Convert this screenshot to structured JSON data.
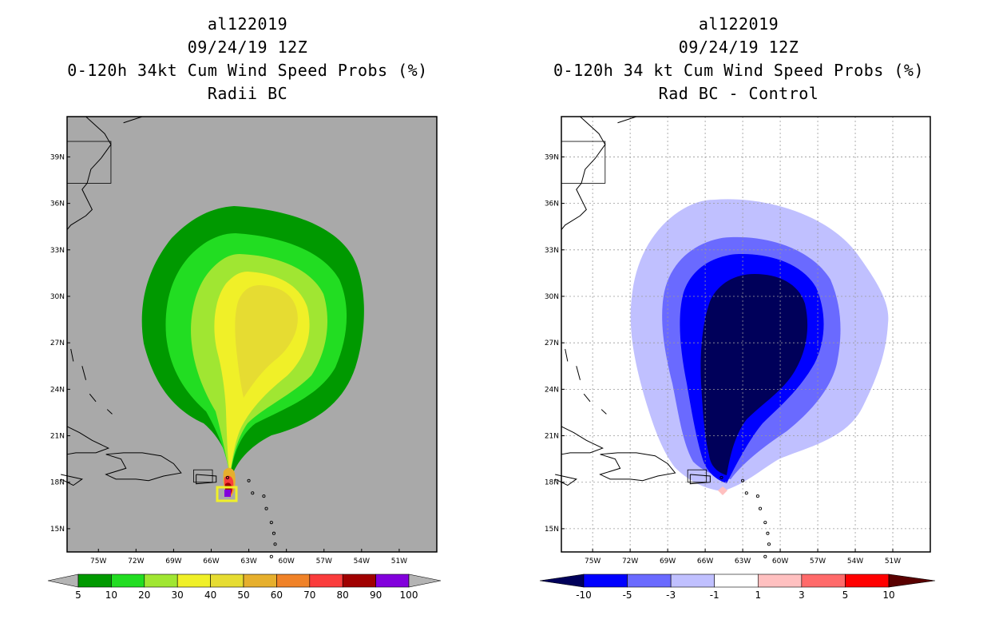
{
  "left_panel": {
    "title_lines": [
      "al122019",
      "09/24/19 12Z",
      "0-120h 34kt Cum Wind Speed Probs (%)",
      "Radii BC"
    ],
    "lat_labels": [
      "39N",
      "36N",
      "33N",
      "30N",
      "27N",
      "24N",
      "21N",
      "18N",
      "15N"
    ],
    "lon_labels": [
      "75W",
      "72W",
      "69W",
      "66W",
      "63W",
      "60W",
      "57W",
      "54W",
      "51W"
    ],
    "colorbar": {
      "labels": [
        "5",
        "10",
        "20",
        "30",
        "40",
        "50",
        "60",
        "70",
        "80",
        "90",
        "100"
      ],
      "colors": [
        "#009900",
        "#22dd22",
        "#a0e632",
        "#f0f028",
        "#e6dc32",
        "#e6af2d",
        "#f08228",
        "#fa3c3c",
        "#a00000",
        "#8200dc"
      ],
      "end_color": "#b4b4b4"
    }
  },
  "right_panel": {
    "title_lines": [
      "al122019",
      "09/24/19 12Z",
      "0-120h 34 kt Cum Wind Speed Probs (%)",
      "Rad BC - Control"
    ],
    "lat_labels": [
      "39N",
      "36N",
      "33N",
      "30N",
      "27N",
      "24N",
      "21N",
      "18N",
      "15N"
    ],
    "lon_labels": [
      "75W",
      "72W",
      "69W",
      "66W",
      "63W",
      "60W",
      "57W",
      "54W",
      "51W"
    ],
    "colorbar": {
      "labels": [
        "-10",
        "-5",
        "-3",
        "-1",
        "1",
        "3",
        "5",
        "10"
      ],
      "colors": [
        "#0000ff",
        "#6a6aff",
        "#c0c0ff",
        "#ffffff",
        "#ffc0c0",
        "#ff6a6a",
        "#ff0000"
      ],
      "low_end_color": "#00005a",
      "high_end_color": "#5a0000"
    }
  },
  "colors": {
    "ocean_left": "#a9a9a9",
    "prob_5": "#009900",
    "prob_10": "#22dd22",
    "prob_20": "#a0e632",
    "prob_30": "#f0f028",
    "prob_40": "#e6dc32",
    "prob_max": "#8200dc",
    "diff_navy": "#00005a",
    "diff_blue": "#0000ff",
    "diff_mid": "#6a6aff",
    "diff_light": "#c0c0ff",
    "diff_pink": "#ffc0c0"
  }
}
